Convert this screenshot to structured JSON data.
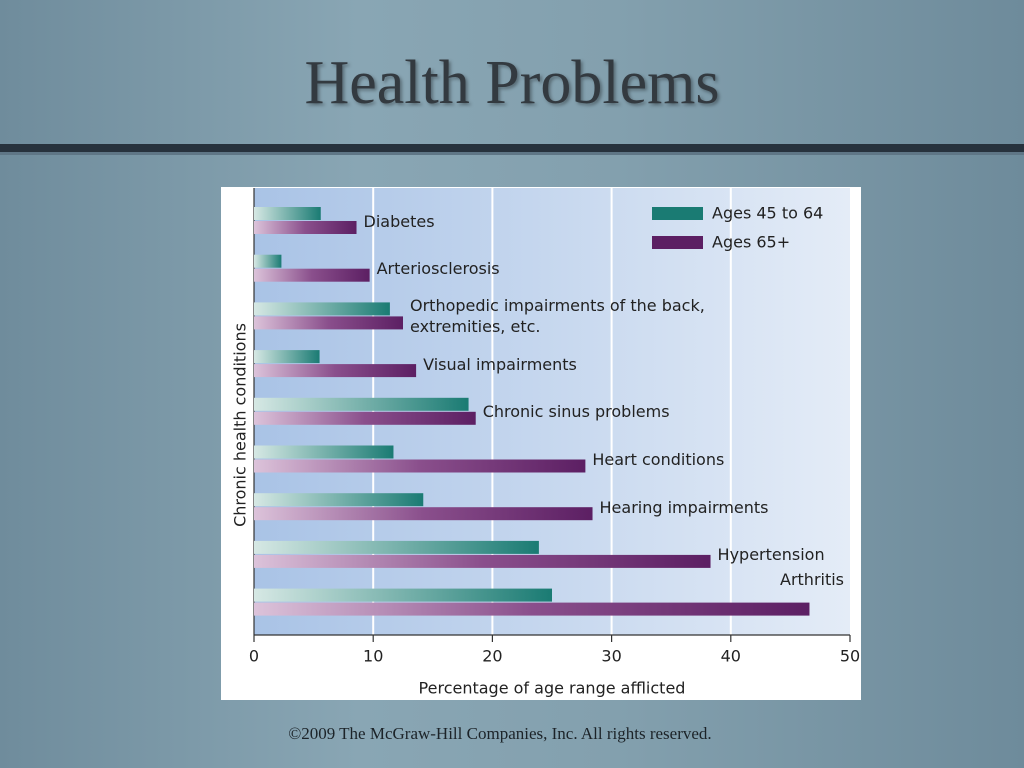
{
  "title": "Health Problems",
  "footer": "©2009 The McGraw-Hill Companies, Inc. All rights reserved.",
  "chart_data": {
    "type": "hbar",
    "ylabel": "Chronic health conditions",
    "xlabel": "Percentage of age range afflicted",
    "categories": [
      "Diabetes",
      "Arteriosclerosis",
      "Orthopedic impairments of the back, extremities, etc.",
      "Visual impairments",
      "Chronic sinus problems",
      "Heart conditions",
      "Hearing impairments",
      "Hypertension",
      "Arthritis"
    ],
    "series": [
      {
        "name": "Ages 45 to 64",
        "color": "#1a7b73",
        "values": [
          5.6,
          2.3,
          11.4,
          5.5,
          18.0,
          11.7,
          14.2,
          23.9,
          25.0
        ]
      },
      {
        "name": "Ages 65+",
        "color": "#5c1f63",
        "values": [
          8.6,
          9.7,
          12.5,
          13.6,
          18.6,
          27.8,
          28.4,
          38.3,
          46.6
        ]
      }
    ],
    "xlim": [
      0,
      50
    ],
    "xticks": [
      0,
      10,
      20,
      30,
      40,
      50
    ],
    "grid": true,
    "legend": "top-right"
  }
}
